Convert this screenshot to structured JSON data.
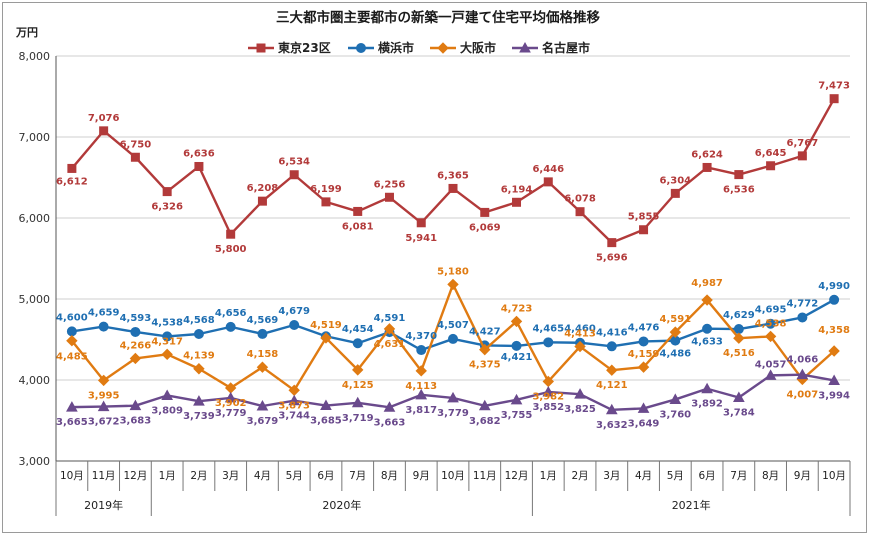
{
  "chart_data": {
    "type": "line",
    "title": "三大都市圏主要都市の新築一戸建て住宅平均価格推移",
    "ylabel": "万円",
    "xlabel": "",
    "ylim": [
      3000,
      8000
    ],
    "yticks": [
      3000,
      4000,
      5000,
      6000,
      7000,
      8000
    ],
    "ytick_labels": [
      "3,000",
      "4,000",
      "5,000",
      "6,000",
      "7,000",
      "8,000"
    ],
    "grid": true,
    "legend_position": "top",
    "categories": [
      "10月",
      "11月",
      "12月",
      "1月",
      "2月",
      "3月",
      "4月",
      "5月",
      "6月",
      "7月",
      "8月",
      "9月",
      "10月",
      "11月",
      "12月",
      "1月",
      "2月",
      "3月",
      "4月",
      "5月",
      "6月",
      "7月",
      "8月",
      "9月",
      "10月"
    ],
    "year_groups": [
      {
        "label": "2019年",
        "start": 0,
        "end": 2
      },
      {
        "label": "2020年",
        "start": 3,
        "end": 14
      },
      {
        "label": "2021年",
        "start": 15,
        "end": 24
      }
    ],
    "series": [
      {
        "name": "東京23区",
        "color": "#b23a3a",
        "marker": "square",
        "values": [
          6612,
          7076,
          6750,
          6326,
          6636,
          5800,
          6208,
          6534,
          6199,
          6081,
          6256,
          5941,
          6365,
          6069,
          6194,
          6446,
          6078,
          5696,
          5855,
          6304,
          6624,
          6536,
          6645,
          6767,
          7473
        ],
        "labels": [
          "6,612",
          "7,076",
          "6,750",
          "6,326",
          "6,636",
          "5,800",
          "6,208",
          "6,534",
          "6,199",
          "6,081",
          "6,256",
          "5,941",
          "6,365",
          "6,069",
          "6,194",
          "6,446",
          "6,078",
          "5,696",
          "5,855",
          "6,304",
          "6,624",
          "6,536",
          "6,645",
          "6,767",
          "7,473"
        ]
      },
      {
        "name": "横浜市",
        "color": "#1f6fb2",
        "marker": "circle",
        "values": [
          4600,
          4659,
          4593,
          4538,
          4568,
          4656,
          4569,
          4679,
          4540,
          4454,
          4591,
          4370,
          4507,
          4427,
          4421,
          4465,
          4460,
          4416,
          4476,
          4486,
          4633,
          4629,
          4695,
          4772,
          4990
        ],
        "labels": [
          "4,600",
          "4,659",
          "4,593",
          "4,538",
          "4,568",
          "4,656",
          "4,569",
          "4,679",
          "",
          "4,454",
          "4,591",
          "4,370",
          "4,507",
          "4,427",
          "4,421",
          "4,465",
          "4,460",
          "4,416",
          "4,476",
          "4,486",
          "4,633",
          "4,629",
          "4,695",
          "4,772",
          "4,990"
        ]
      },
      {
        "name": "大阪市",
        "color": "#e07b12",
        "marker": "diamond",
        "values": [
          4485,
          3995,
          4266,
          4317,
          4139,
          3902,
          4158,
          3873,
          4519,
          4125,
          4631,
          4113,
          5180,
          4375,
          4723,
          3982,
          4413,
          4121,
          4159,
          4591,
          4987,
          4516,
          4538,
          4007,
          4358
        ],
        "labels": [
          "4,485",
          "3,995",
          "4,266",
          "4,317",
          "4,139",
          "3,902",
          "4,158",
          "3,873",
          "4,519",
          "4,125",
          "4,631",
          "4,113",
          "5,180",
          "4,375",
          "4,723",
          "3,982",
          "4,413",
          "4,121",
          "4,159",
          "4,591",
          "4,987",
          "4,516",
          "4,538",
          "4,007",
          "4,358"
        ]
      },
      {
        "name": "名古屋市",
        "color": "#6a4a8c",
        "marker": "triangle",
        "values": [
          3665,
          3672,
          3683,
          3809,
          3739,
          3779,
          3679,
          3744,
          3685,
          3719,
          3663,
          3817,
          3779,
          3682,
          3755,
          3852,
          3825,
          3632,
          3649,
          3760,
          3892,
          3784,
          4057,
          4066,
          3994
        ],
        "labels": [
          "3,665",
          "3,672",
          "3,683",
          "3,809",
          "3,739",
          "3,779",
          "3,679",
          "3,744",
          "3,685",
          "3,719",
          "3,663",
          "3,817",
          "3,779",
          "3,682",
          "3,755",
          "3,852",
          "3,825",
          "3,632",
          "3,649",
          "3,760",
          "3,892",
          "3,784",
          "4,057",
          "4,066",
          "3,994"
        ]
      }
    ]
  }
}
